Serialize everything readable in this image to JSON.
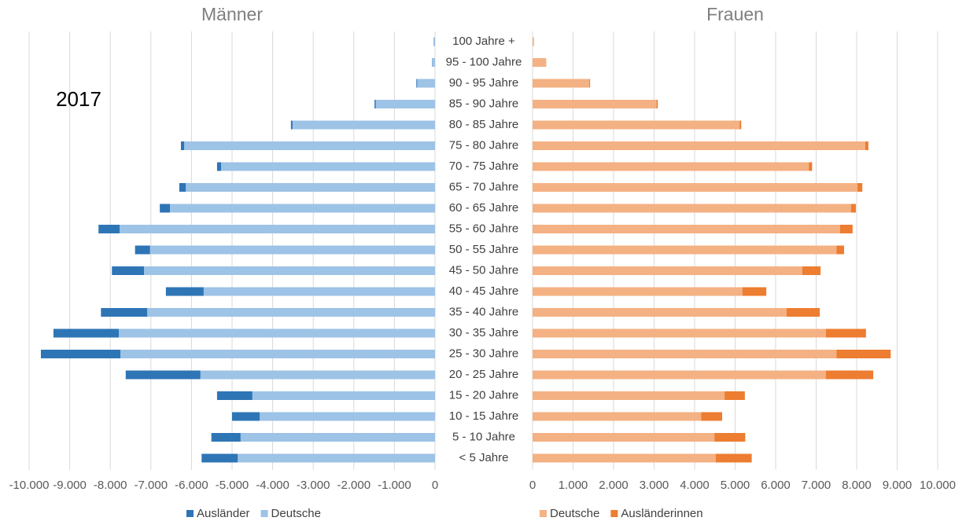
{
  "chart_data": {
    "type": "bar",
    "orientation": "horizontal",
    "stacked": true,
    "annotation": "2017",
    "grid": true,
    "categories": [
      "100 Jahre +",
      "95 - 100 Jahre",
      "90 - 95 Jahre",
      "85 - 90 Jahre",
      "80 - 85 Jahre",
      "75 - 80 Jahre",
      "70 - 75 Jahre",
      "65 - 70 Jahre",
      "60 - 65 Jahre",
      "55 - 60 Jahre",
      "50 - 55 Jahre",
      "45 - 50 Jahre",
      "40 - 45 Jahre",
      "35 - 40 Jahre",
      "30 - 35 Jahre",
      "25 - 30 Jahre",
      "20 - 25 Jahre",
      "15 - 20 Jahre",
      "10 - 15 Jahre",
      "5 - 10 Jahre",
      "< 5 Jahre"
    ],
    "panels": [
      {
        "title": "Männer",
        "xlim": [
          -10000,
          0
        ],
        "xticks": [
          {
            "value": -10000,
            "label": "-10.000"
          },
          {
            "value": -9000,
            "label": "-9.000"
          },
          {
            "value": -8000,
            "label": "-8.000"
          },
          {
            "value": -7000,
            "label": "-7.000"
          },
          {
            "value": -6000,
            "label": "-6.000"
          },
          {
            "value": -5000,
            "label": "-5.000"
          },
          {
            "value": -4000,
            "label": "-4.000"
          },
          {
            "value": -3000,
            "label": "-3.000"
          },
          {
            "value": -2000,
            "label": "-2.000"
          },
          {
            "value": -1000,
            "label": "-1.000"
          },
          0
        ],
        "series": [
          {
            "name": "Ausländer",
            "color": "#2e75b6",
            "values": [
              -5,
              -5,
              -20,
              -30,
              -40,
              -80,
              -100,
              -160,
              -250,
              -520,
              -370,
              -790,
              -930,
              -1140,
              -1610,
              -1960,
              -1840,
              -870,
              -680,
              -720,
              -890
            ]
          },
          {
            "name": "Deutsche",
            "color": "#9dc3e6",
            "values": [
              -30,
              -70,
              -440,
              -1460,
              -3510,
              -6180,
              -5270,
              -6140,
              -6530,
              -7770,
              -7020,
              -7170,
              -5700,
              -7090,
              -7790,
              -7750,
              -5780,
              -4500,
              -4320,
              -4790,
              -4860
            ]
          }
        ]
      },
      {
        "title": "Frauen",
        "xlim": [
          0,
          10000
        ],
        "xticks": [
          0,
          {
            "value": 1000,
            "label": "1.000"
          },
          {
            "value": 2000,
            "label": "2.000"
          },
          {
            "value": 3000,
            "label": "3.000"
          },
          {
            "value": 4000,
            "label": "4.000"
          },
          {
            "value": 5000,
            "label": "5.000"
          },
          {
            "value": 6000,
            "label": "6.000"
          },
          {
            "value": 7000,
            "label": "7.000"
          },
          {
            "value": 8000,
            "label": "8.000"
          },
          {
            "value": 9000,
            "label": "9.000"
          },
          {
            "value": 10000,
            "label": "10.000"
          }
        ],
        "series": [
          {
            "name": "Deutsche",
            "color": "#f4b183",
            "values": [
              30,
              330,
              1400,
              3060,
              5110,
              8210,
              6820,
              8020,
              7860,
              7590,
              7500,
              6660,
              5180,
              6270,
              7240,
              7500,
              7240,
              4740,
              4160,
              4490,
              4520
            ]
          },
          {
            "name": "Ausländerinnen",
            "color": "#ed7d31",
            "values": [
              3,
              5,
              20,
              30,
              40,
              80,
              80,
              120,
              120,
              310,
              190,
              450,
              590,
              820,
              990,
              1340,
              1170,
              500,
              520,
              760,
              890
            ]
          }
        ]
      }
    ]
  }
}
